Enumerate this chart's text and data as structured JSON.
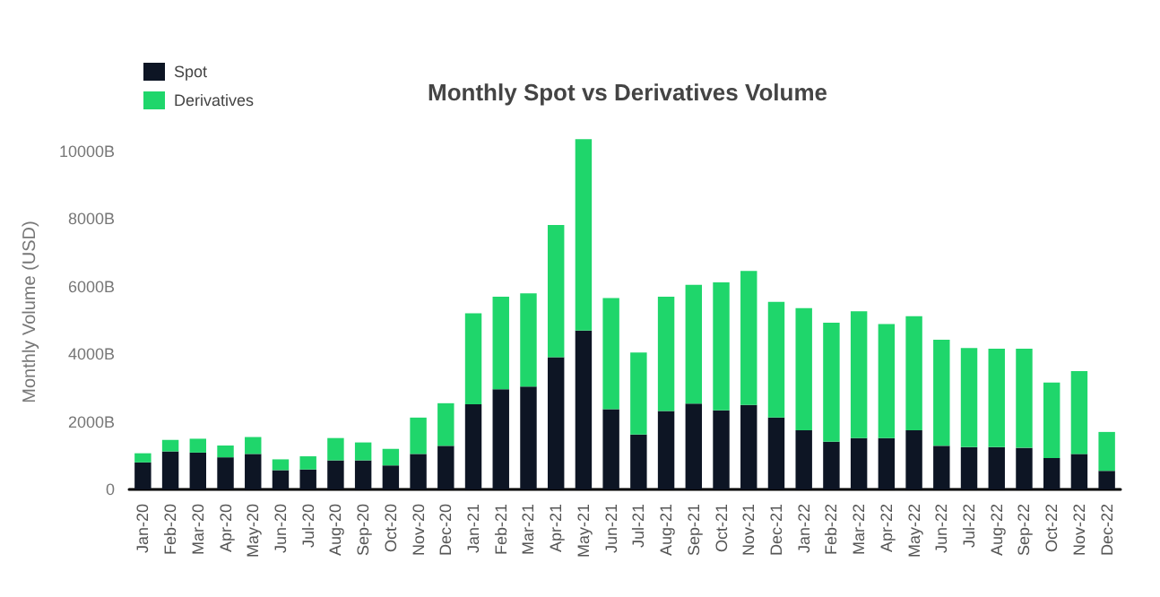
{
  "chart_data": {
    "type": "bar",
    "title": "Monthly Spot vs Derivatives Volume",
    "ylabel": "Monthly Volume (USD)",
    "categories": [
      "Jan-20",
      "Feb-20",
      "Mar-20",
      "Apr-20",
      "May-20",
      "Jun-20",
      "Jul-20",
      "Aug-20",
      "Sep-20",
      "Oct-20",
      "Nov-20",
      "Dec-20",
      "Jan-21",
      "Feb-21",
      "Mar-21",
      "Apr-21",
      "May-21",
      "Jun-21",
      "Jul-21",
      "Aug-21",
      "Sep-21",
      "Oct-21",
      "Nov-21",
      "Dec-21",
      "Jan-22",
      "Feb-22",
      "Mar-22",
      "Apr-22",
      "May-22",
      "Jun-22",
      "Jul-22",
      "Aug-22",
      "Sep-22",
      "Oct-22",
      "Nov-22",
      "Dec-22"
    ],
    "series": [
      {
        "name": "Spot",
        "color": "#0d1524",
        "values": [
          800,
          1125,
          1090,
          950,
          1050,
          570,
          590,
          860,
          860,
          710,
          1050,
          1290,
          2520,
          2960,
          3040,
          3910,
          4700,
          2375,
          1625,
          2320,
          2540,
          2340,
          2500,
          2125,
          1750,
          1410,
          1520,
          1520,
          1750,
          1290,
          1250,
          1250,
          1230,
          930,
          1050,
          550
        ]
      },
      {
        "name": "Derivatives",
        "color": "#1fd66b",
        "values": [
          270,
          340,
          410,
          350,
          500,
          320,
          390,
          660,
          530,
          490,
          1075,
          1260,
          2690,
          2740,
          2760,
          3910,
          5660,
          3285,
          2425,
          3380,
          3510,
          3785,
          3960,
          3425,
          3610,
          3520,
          3750,
          3370,
          3375,
          3140,
          2930,
          2910,
          2930,
          2230,
          2450,
          1150
        ]
      }
    ],
    "stacked": true,
    "ylim": [
      0,
      10500
    ],
    "yticks": [
      0,
      {
        "value": 2000,
        "label": "2000B"
      },
      {
        "value": 4000,
        "label": "4000B"
      },
      {
        "value": 6000,
        "label": "6000B"
      },
      {
        "value": 8000,
        "label": "8000B"
      },
      {
        "value": 10000,
        "label": "10000B"
      }
    ],
    "grid": false,
    "legend": "top left"
  }
}
